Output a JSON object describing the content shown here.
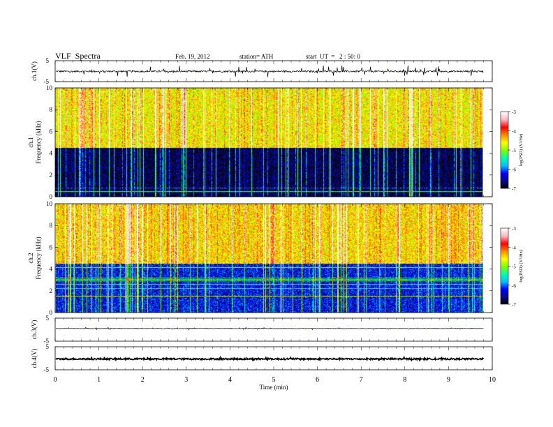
{
  "header": {
    "title": "VLF  Spectra",
    "date": "Feb. 19, 2012",
    "station": "station= ATH",
    "start": "start  UT  =   2 : 50: 0"
  },
  "colors": {
    "palette": [
      "#000000",
      "#0b0b80",
      "#0000ff",
      "#00bfff",
      "#00ffb0",
      "#7fff00",
      "#ffff00",
      "#ff8c00",
      "#ff0000",
      "#ffb6c1",
      "#ffffff"
    ],
    "trace": "#000000"
  },
  "chart_data": [
    {
      "type": "line",
      "panel": "ch1",
      "ylabel": "ch.1(V)",
      "ylim": [
        -5,
        5
      ],
      "y_ticks": [
        "5",
        "-5"
      ],
      "baseline": -0.1,
      "noise_amplitude": 0.4,
      "spike_amplitude": 2.5
    },
    {
      "type": "heatmap",
      "panel": "ch1-spectrogram",
      "ylabel_line1": "ch.1",
      "ylabel_line2": "Frequency  (kHz)",
      "ylim": [
        0,
        10
      ],
      "y_ticks": [
        "0",
        "2",
        "4",
        "6",
        "8",
        "10"
      ],
      "xlim": [
        0,
        9.8
      ],
      "colorbar": {
        "label": "log(PSD) (V²/Hz)",
        "range": [
          -7,
          -3
        ],
        "ticks": [
          "-3",
          "-4",
          "-5",
          "-6",
          "-7"
        ]
      },
      "description_levels": {
        "low_band_kHz": [
          0,
          4.5
        ],
        "low_band_log_psd": -6.8,
        "high_band_log_psd": -4.6
      }
    },
    {
      "type": "heatmap",
      "panel": "ch2-spectrogram",
      "ylabel_line1": "ch.2",
      "ylabel_line2": "Frequency  (kHz)",
      "ylim": [
        0,
        10
      ],
      "y_ticks": [
        "0",
        "2",
        "4",
        "6",
        "8",
        "10"
      ],
      "xlim": [
        0,
        9.8
      ],
      "colorbar": {
        "label": "log(PSD) (V²/Hz)",
        "range": [
          -7,
          -3
        ],
        "ticks": [
          "-3",
          "-4",
          "-5",
          "-6",
          "-7"
        ]
      },
      "description_levels": {
        "low_band_kHz": [
          0,
          4.5
        ],
        "low_band_log_psd": -6.3,
        "high_band_log_psd": -4.5
      }
    },
    {
      "type": "line",
      "panel": "ch3",
      "ylabel": "ch.3(V)",
      "ylim": [
        -5,
        5
      ],
      "y_ticks": [
        "5",
        "-5"
      ],
      "baseline": 0.5,
      "noise_amplitude": 0.1,
      "spike_amplitude": 0.5
    },
    {
      "type": "line",
      "panel": "ch4",
      "ylabel": "ch.4(V)",
      "ylim": [
        -5,
        5
      ],
      "y_ticks": [
        "5",
        "-5"
      ],
      "baseline": -0.3,
      "noise_amplitude": 0.35,
      "spike_amplitude": 0.6
    }
  ],
  "x_axis": {
    "label": "Time  (min)",
    "ticks": [
      "0",
      "1",
      "2",
      "3",
      "4",
      "5",
      "6",
      "7",
      "8",
      "9",
      "10"
    ],
    "xlim": [
      0,
      10
    ]
  }
}
